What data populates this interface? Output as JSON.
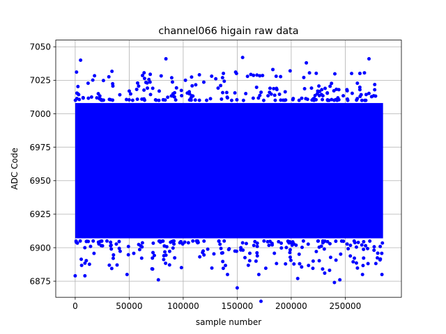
{
  "chart_data": {
    "type": "scatter",
    "title": "channel066 higain raw data",
    "xlabel": "sample number",
    "ylabel": "ADC Code",
    "xlim": [
      -18000,
      302000
    ],
    "ylim": [
      6863,
      7055
    ],
    "x_ticks": [
      0,
      50000,
      100000,
      150000,
      200000,
      250000
    ],
    "y_ticks": [
      6875,
      6900,
      6925,
      6950,
      6975,
      7000,
      7025,
      7050
    ],
    "grid": true,
    "legend": "none",
    "marker_color": "#0000ff",
    "sample_count": 285000,
    "dense_band": [
      6905,
      7010
    ],
    "outliers": [
      {
        "x": 0,
        "y": 6879
      },
      {
        "x": 5000,
        "y": 7040
      },
      {
        "x": 9000,
        "y": 6879
      },
      {
        "x": 48000,
        "y": 6880
      },
      {
        "x": 77000,
        "y": 6876
      },
      {
        "x": 84000,
        "y": 7041
      },
      {
        "x": 141000,
        "y": 6880
      },
      {
        "x": 150000,
        "y": 6870
      },
      {
        "x": 155000,
        "y": 7042
      },
      {
        "x": 170000,
        "y": 6880
      },
      {
        "x": 172000,
        "y": 6860
      },
      {
        "x": 183000,
        "y": 7033
      },
      {
        "x": 199000,
        "y": 7032
      },
      {
        "x": 206000,
        "y": 6877
      },
      {
        "x": 214000,
        "y": 7038
      },
      {
        "x": 231000,
        "y": 6881
      },
      {
        "x": 240000,
        "y": 6874
      },
      {
        "x": 245000,
        "y": 6876
      },
      {
        "x": 266000,
        "y": 6880
      },
      {
        "x": 272000,
        "y": 7041
      },
      {
        "x": 284000,
        "y": 6880
      }
    ]
  }
}
